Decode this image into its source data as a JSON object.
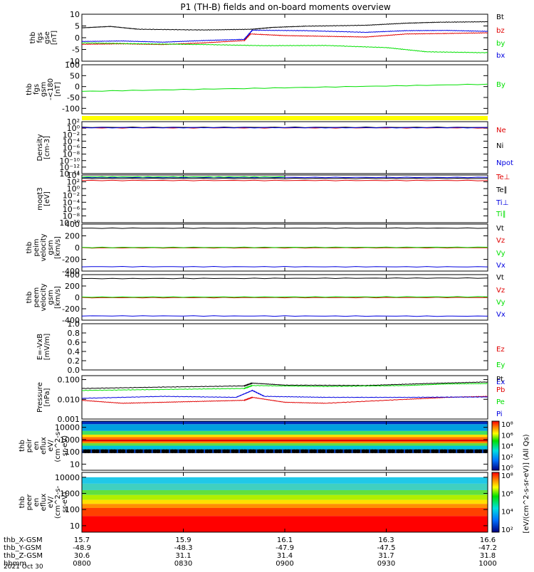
{
  "title": "P1 (TH-B) fields and on-board moments overview",
  "colors": {
    "black": "#000000",
    "red": "#e00000",
    "green": "#00e000",
    "blue": "#0000e0",
    "yellow": "#ffff00"
  },
  "chart_data": [
    {
      "type": "line",
      "id": "fgs",
      "ylabel": [
        "thb",
        "fgs",
        "gse",
        "[nT]"
      ],
      "ylim": [
        -10,
        10
      ],
      "yticks": [
        "10",
        "5",
        "0",
        "-5",
        "-10"
      ],
      "tickvals": [
        10,
        5,
        0,
        -5,
        -10
      ],
      "series": [
        {
          "name": "Bt",
          "color": "black",
          "x": [
            0,
            0.07,
            0.14,
            0.3,
            0.42,
            0.47,
            0.55,
            0.7,
            0.8,
            0.88,
            1
          ],
          "y": [
            4.2,
            4.8,
            3.6,
            3.3,
            3.6,
            4.4,
            4.9,
            5.3,
            6.2,
            6.6,
            6.8
          ]
        },
        {
          "name": "bz",
          "color": "red",
          "x": [
            0,
            0.1,
            0.2,
            0.3,
            0.4,
            0.415,
            0.5,
            0.6,
            0.7,
            0.8,
            0.9,
            1
          ],
          "y": [
            -2.8,
            -2.6,
            -2.9,
            -2.2,
            -1.2,
            1.6,
            0.9,
            0.6,
            0.3,
            1.6,
            1.8,
            2.1
          ]
        },
        {
          "name": "by",
          "color": "green",
          "x": [
            0,
            0.15,
            0.3,
            0.45,
            0.6,
            0.75,
            0.85,
            1
          ],
          "y": [
            -2.2,
            -2.6,
            -2.9,
            -3.4,
            -3.3,
            -4.2,
            -6.0,
            -6.4
          ]
        },
        {
          "name": "bx",
          "color": "blue",
          "x": [
            0,
            0.1,
            0.2,
            0.3,
            0.4,
            0.42,
            0.55,
            0.7,
            0.8,
            0.9,
            1
          ],
          "y": [
            -1.6,
            -1.4,
            -1.9,
            -1.2,
            -0.7,
            3.2,
            3.0,
            2.3,
            3.0,
            3.1,
            2.7
          ]
        }
      ]
    },
    {
      "type": "line",
      "id": "fgsb",
      "ylabel": [
        "thb",
        "fgs",
        "gsm",
        "-<180",
        "[nT]"
      ],
      "ylim": [
        -125,
        100
      ],
      "yticks": [
        "100",
        "50",
        "0",
        "-50",
        "-100"
      ],
      "tickvals": [
        100,
        50,
        0,
        -50,
        -100
      ],
      "series": [
        {
          "name": "By",
          "color": "green",
          "x": [
            0,
            1
          ],
          "y": [
            -22,
            11
          ]
        }
      ]
    },
    {
      "type": "line",
      "id": "dens",
      "ylabel": [
        "Density",
        "[cm-3]"
      ],
      "ylim": [
        -14,
        2
      ],
      "log": true,
      "yticks": [
        "10²",
        "10⁰",
        "10⁻²",
        "10⁻⁴",
        "10⁻⁶",
        "10⁻⁸",
        "10⁻¹⁰",
        "10⁻¹²",
        "10⁻¹⁴"
      ],
      "tickvals": [
        2,
        0,
        -2,
        -4,
        -6,
        -8,
        -10,
        -12,
        -14
      ],
      "series": [
        {
          "name": "Ne",
          "color": "red",
          "x": [
            0,
            1
          ],
          "y": [
            0.1,
            0.1
          ]
        },
        {
          "name": "Ni",
          "color": "black",
          "x": [
            0,
            1
          ],
          "y": [
            0.25,
            0.25
          ]
        },
        {
          "name": "Npot",
          "color": "blue",
          "x": [
            0,
            1
          ],
          "y": [
            0.15,
            0.15
          ]
        }
      ]
    },
    {
      "type": "line",
      "id": "temp",
      "ylabel": [
        "moqt3",
        "[eV]"
      ],
      "ylim": [
        -10,
        4
      ],
      "log": true,
      "yticks": [
        "10⁴",
        "10²",
        "10⁰",
        "10⁻²",
        "10⁻⁴",
        "10⁻⁶",
        "10⁻⁸",
        "10⁻¹⁰"
      ],
      "tickvals": [
        4,
        2,
        0,
        -2,
        -4,
        -6,
        -8,
        -10
      ],
      "series": [
        {
          "name": "Te⊥",
          "color": "red",
          "x": [
            0,
            1
          ],
          "y": [
            2.4,
            2.4
          ]
        },
        {
          "name": "Te∥",
          "color": "black",
          "x": [
            0,
            1
          ],
          "y": [
            3.0,
            3.0
          ]
        },
        {
          "name": "Ti⊥",
          "color": "blue",
          "x": [
            0,
            1
          ],
          "y": [
            3.3,
            3.3
          ]
        },
        {
          "name": "Ti∥",
          "color": "green",
          "x": [
            0,
            0.5
          ],
          "y": [
            3.45,
            3.45
          ]
        }
      ]
    },
    {
      "type": "line",
      "id": "vi",
      "ylabel": [
        "thb",
        "peim",
        "velocity",
        "gsm",
        "[km/s]"
      ],
      "ylim": [
        -400,
        400
      ],
      "yticks": [
        "400",
        "200",
        "0",
        "-200",
        "-400"
      ],
      "tickvals": [
        400,
        200,
        0,
        -200,
        -400
      ],
      "series": [
        {
          "name": "Vt",
          "color": "black",
          "x": [
            0,
            1
          ],
          "y": [
            330,
            332
          ]
        },
        {
          "name": "Vz",
          "color": "red",
          "x": [
            0,
            1
          ],
          "y": [
            -5,
            -3
          ]
        },
        {
          "name": "Vy",
          "color": "green",
          "x": [
            0,
            1
          ],
          "y": [
            2,
            6
          ]
        },
        {
          "name": "Vx",
          "color": "blue",
          "x": [
            0,
            1
          ],
          "y": [
            -325,
            -328
          ]
        }
      ]
    },
    {
      "type": "line",
      "id": "ve",
      "ylabel": [
        "thb",
        "peem",
        "velocity",
        "gsm",
        "[km/s]"
      ],
      "ylim": [
        -400,
        400
      ],
      "yticks": [
        "400",
        "200",
        "0",
        "-200",
        "-400"
      ],
      "tickvals": [
        400,
        200,
        0,
        -200,
        -400
      ],
      "series": [
        {
          "name": "Vt",
          "color": "black",
          "x": [
            0,
            1
          ],
          "y": [
            330,
            340
          ]
        },
        {
          "name": "Vz",
          "color": "red",
          "x": [
            0,
            1
          ],
          "y": [
            -5,
            -2
          ]
        },
        {
          "name": "Vy",
          "color": "green",
          "x": [
            0,
            1
          ],
          "y": [
            5,
            10
          ]
        },
        {
          "name": "Vx",
          "color": "blue",
          "x": [
            0,
            1
          ],
          "y": [
            -325,
            -330
          ]
        }
      ]
    },
    {
      "type": "line",
      "id": "efield",
      "ylabel": [
        "E=-VxB",
        "[mV/m]"
      ],
      "ylim": [
        0,
        1
      ],
      "yticks": [
        "1.0",
        "0.8",
        "0.6",
        "0.4",
        "0.2",
        "0.0"
      ],
      "tickvals": [
        1,
        0.8,
        0.6,
        0.4,
        0.2,
        0
      ],
      "series": [
        {
          "name": "Ez",
          "color": "red",
          "x": [],
          "y": []
        },
        {
          "name": "Ey",
          "color": "green",
          "x": [],
          "y": []
        },
        {
          "name": "Ex",
          "color": "blue",
          "x": [],
          "y": []
        }
      ]
    },
    {
      "type": "line",
      "id": "press",
      "ylabel": [
        "Pressure",
        "[nPa]"
      ],
      "ylim": [
        -3,
        -0.8
      ],
      "log": true,
      "yticks": [
        "0.100",
        "0.010",
        "0.001"
      ],
      "tickvals": [
        -1,
        -2,
        -3
      ],
      "series": [
        {
          "name": "Pt",
          "color": "black",
          "x": [
            0,
            0.2,
            0.4,
            0.42,
            0.5,
            0.7,
            0.85,
            1
          ],
          "y": [
            -1.45,
            -1.38,
            -1.32,
            -1.18,
            -1.28,
            -1.3,
            -1.2,
            -1.12
          ]
        },
        {
          "name": "Pb",
          "color": "red",
          "x": [
            0,
            0.1,
            0.2,
            0.3,
            0.4,
            0.42,
            0.5,
            0.6,
            0.8,
            0.9,
            1
          ],
          "y": [
            -2.05,
            -2.2,
            -2.15,
            -2.1,
            -2.05,
            -1.9,
            -2.15,
            -2.2,
            -2.0,
            -1.9,
            -1.85
          ]
        },
        {
          "name": "Pe",
          "color": "green",
          "x": [
            0,
            0.2,
            0.4,
            0.42,
            0.6,
            0.8,
            0.9,
            1
          ],
          "y": [
            -1.55,
            -1.5,
            -1.45,
            -1.3,
            -1.35,
            -1.3,
            -1.22,
            -1.2
          ]
        },
        {
          "name": "Pi",
          "color": "blue",
          "x": [
            0,
            0.2,
            0.38,
            0.42,
            0.45,
            0.6,
            0.8,
            1
          ],
          "y": [
            -1.95,
            -1.85,
            -1.9,
            -1.55,
            -1.85,
            -1.9,
            -1.9,
            -1.88
          ]
        }
      ]
    },
    {
      "type": "heatmap",
      "id": "peir",
      "ylabel": [
        "thb",
        "peir",
        "en",
        "eflux",
        "eV/",
        "(cm^2-s-",
        "sr-eV)"
      ],
      "yticks": [
        "10000",
        "1000",
        "100",
        "10"
      ],
      "tickvals": [
        4,
        3,
        2,
        1
      ],
      "ylim": [
        0.5,
        4.5
      ]
    },
    {
      "type": "heatmap",
      "id": "peer",
      "ylabel": [
        "thb",
        "peer",
        "en",
        "eflux",
        "eV/",
        "(cm^2-s-",
        "sr-eV)"
      ],
      "yticks": [
        "10000",
        "1000",
        "100",
        "10"
      ],
      "tickvals": [
        4,
        3,
        2,
        1
      ],
      "ylim": [
        0.6,
        4.3
      ]
    }
  ],
  "colorbar": {
    "label": "[eV/(cm^2-s-sr-eV)] (All Qs)",
    "bars": [
      {
        "ticks": [
          "10⁸",
          "10⁶",
          "10⁴",
          "10²",
          "10⁰"
        ]
      },
      {
        "ticks": [
          "10⁸",
          "10⁶",
          "10⁴",
          "10²"
        ]
      }
    ]
  },
  "xaxis": {
    "rows": [
      {
        "label": "thb_X-GSM",
        "values": [
          "15.7",
          "15.9",
          "16.1",
          "16.3",
          "16.6"
        ]
      },
      {
        "label": "thb_Y-GSM",
        "values": [
          "-48.9",
          "-48.3",
          "-47.9",
          "-47.5",
          "-47.2"
        ]
      },
      {
        "label": "thb_Z-GSM",
        "values": [
          "30.6",
          "31.1",
          "31.4",
          "31.7",
          "31.8"
        ]
      },
      {
        "label": "hhmm",
        "values": [
          "0800",
          "0830",
          "0900",
          "0930",
          "1000"
        ]
      }
    ],
    "date": "2021 Oct 30"
  }
}
